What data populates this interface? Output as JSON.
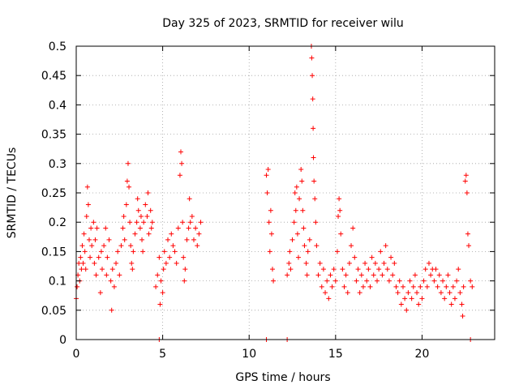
{
  "chart_data": {
    "type": "scatter",
    "title": "Day 325 of 2023, SRMTID for receiver wilu",
    "xlabel": "GPS time / hours",
    "ylabel": "SRMTID / TECUs",
    "xlim": [
      0,
      24.2
    ],
    "ylim": [
      0,
      0.5
    ],
    "grid": true,
    "legend": "none",
    "marker": "plus",
    "color": "#ff0000",
    "xticks": [
      0,
      5,
      10,
      15,
      20
    ],
    "xtick_labels": [
      "0",
      "5",
      "10",
      "15",
      "20"
    ],
    "yticks": [
      0,
      0.05,
      0.1,
      0.15,
      0.2,
      0.25,
      0.3,
      0.35,
      0.4,
      0.45,
      0.5
    ],
    "ytick_labels": [
      "0",
      "0.05",
      "0.1",
      "0.15",
      "0.2",
      "0.25",
      "0.3",
      "0.35",
      "0.4",
      "0.45",
      "0.5"
    ],
    "series": [
      {
        "name": "SRMTID",
        "points": [
          [
            0.0,
            0.07
          ],
          [
            0.05,
            0.09
          ],
          [
            0.1,
            0.11
          ],
          [
            0.15,
            0.13
          ],
          [
            0.2,
            0.1
          ],
          [
            0.25,
            0.14
          ],
          [
            0.3,
            0.12
          ],
          [
            0.35,
            0.16
          ],
          [
            0.4,
            0.13
          ],
          [
            0.45,
            0.18
          ],
          [
            0.5,
            0.15
          ],
          [
            0.55,
            0.12
          ],
          [
            0.6,
            0.21
          ],
          [
            0.65,
            0.26
          ],
          [
            0.7,
            0.23
          ],
          [
            0.75,
            0.17
          ],
          [
            0.8,
            0.14
          ],
          [
            0.85,
            0.19
          ],
          [
            0.9,
            0.16
          ],
          [
            1.0,
            0.2
          ],
          [
            1.05,
            0.13
          ],
          [
            1.1,
            0.17
          ],
          [
            1.15,
            0.11
          ],
          [
            1.2,
            0.19
          ],
          [
            1.3,
            0.14
          ],
          [
            1.4,
            0.08
          ],
          [
            1.45,
            0.15
          ],
          [
            1.5,
            0.12
          ],
          [
            1.6,
            0.16
          ],
          [
            1.7,
            0.19
          ],
          [
            1.75,
            0.11
          ],
          [
            1.8,
            0.14
          ],
          [
            1.9,
            0.17
          ],
          [
            2.0,
            0.1
          ],
          [
            2.05,
            0.05
          ],
          [
            2.1,
            0.12
          ],
          [
            2.2,
            0.09
          ],
          [
            2.3,
            0.13
          ],
          [
            2.4,
            0.15
          ],
          [
            2.5,
            0.11
          ],
          [
            2.6,
            0.16
          ],
          [
            2.7,
            0.19
          ],
          [
            2.75,
            0.21
          ],
          [
            2.8,
            0.17
          ],
          [
            2.9,
            0.23
          ],
          [
            2.95,
            0.27
          ],
          [
            3.0,
            0.3
          ],
          [
            3.05,
            0.26
          ],
          [
            3.1,
            0.2
          ],
          [
            3.15,
            0.16
          ],
          [
            3.2,
            0.13
          ],
          [
            3.25,
            0.12
          ],
          [
            3.3,
            0.15
          ],
          [
            3.4,
            0.18
          ],
          [
            3.5,
            0.2
          ],
          [
            3.55,
            0.24
          ],
          [
            3.6,
            0.22
          ],
          [
            3.7,
            0.19
          ],
          [
            3.75,
            0.21
          ],
          [
            3.8,
            0.17
          ],
          [
            3.85,
            0.15
          ],
          [
            3.9,
            0.2
          ],
          [
            4.0,
            0.23
          ],
          [
            4.1,
            0.21
          ],
          [
            4.15,
            0.25
          ],
          [
            4.2,
            0.18
          ],
          [
            4.3,
            0.22
          ],
          [
            4.35,
            0.19
          ],
          [
            4.4,
            0.2
          ],
          [
            4.6,
            0.09
          ],
          [
            4.7,
            0.11
          ],
          [
            4.8,
            0.14
          ],
          [
            4.85,
            0.06
          ],
          [
            4.9,
            0.1
          ],
          [
            5.0,
            0.08
          ],
          [
            5.05,
            0.12
          ],
          [
            5.1,
            0.15
          ],
          [
            5.2,
            0.13
          ],
          [
            5.3,
            0.17
          ],
          [
            5.4,
            0.14
          ],
          [
            5.5,
            0.18
          ],
          [
            5.6,
            0.16
          ],
          [
            5.7,
            0.15
          ],
          [
            5.8,
            0.13
          ],
          [
            5.9,
            0.19
          ],
          [
            6.0,
            0.28
          ],
          [
            6.05,
            0.32
          ],
          [
            6.1,
            0.3
          ],
          [
            6.15,
            0.2
          ],
          [
            6.2,
            0.14
          ],
          [
            6.25,
            0.1
          ],
          [
            6.3,
            0.12
          ],
          [
            6.4,
            0.17
          ],
          [
            6.5,
            0.19
          ],
          [
            6.55,
            0.24
          ],
          [
            6.6,
            0.2
          ],
          [
            6.7,
            0.21
          ],
          [
            6.8,
            0.17
          ],
          [
            6.9,
            0.19
          ],
          [
            7.0,
            0.16
          ],
          [
            7.1,
            0.18
          ],
          [
            7.2,
            0.2
          ],
          [
            11.0,
            0.28
          ],
          [
            11.05,
            0.25
          ],
          [
            11.1,
            0.29
          ],
          [
            11.15,
            0.2
          ],
          [
            11.2,
            0.15
          ],
          [
            11.25,
            0.22
          ],
          [
            11.3,
            0.18
          ],
          [
            11.35,
            0.12
          ],
          [
            11.4,
            0.1
          ],
          [
            12.2,
            0.11
          ],
          [
            12.3,
            0.13
          ],
          [
            12.35,
            0.15
          ],
          [
            12.4,
            0.12
          ],
          [
            12.5,
            0.17
          ],
          [
            12.6,
            0.2
          ],
          [
            12.65,
            0.25
          ],
          [
            12.7,
            0.22
          ],
          [
            12.75,
            0.26
          ],
          [
            12.8,
            0.18
          ],
          [
            12.85,
            0.14
          ],
          [
            12.9,
            0.24
          ],
          [
            13.0,
            0.29
          ],
          [
            13.05,
            0.27
          ],
          [
            13.1,
            0.22
          ],
          [
            13.15,
            0.19
          ],
          [
            13.2,
            0.16
          ],
          [
            13.3,
            0.13
          ],
          [
            13.35,
            0.11
          ],
          [
            13.4,
            0.15
          ],
          [
            13.5,
            0.17
          ],
          [
            13.6,
            0.5
          ],
          [
            13.62,
            0.48
          ],
          [
            13.65,
            0.45
          ],
          [
            13.68,
            0.41
          ],
          [
            13.7,
            0.36
          ],
          [
            13.72,
            0.31
          ],
          [
            13.75,
            0.27
          ],
          [
            13.8,
            0.24
          ],
          [
            13.85,
            0.2
          ],
          [
            13.9,
            0.16
          ],
          [
            14.0,
            0.11
          ],
          [
            14.1,
            0.13
          ],
          [
            14.2,
            0.09
          ],
          [
            14.3,
            0.12
          ],
          [
            14.4,
            0.08
          ],
          [
            14.5,
            0.1
          ],
          [
            14.6,
            0.07
          ],
          [
            14.7,
            0.11
          ],
          [
            14.8,
            0.09
          ],
          [
            14.9,
            0.12
          ],
          [
            15.0,
            0.1
          ],
          [
            15.1,
            0.15
          ],
          [
            15.15,
            0.21
          ],
          [
            15.2,
            0.24
          ],
          [
            15.25,
            0.22
          ],
          [
            15.3,
            0.18
          ],
          [
            15.4,
            0.12
          ],
          [
            15.5,
            0.09
          ],
          [
            15.6,
            0.11
          ],
          [
            15.7,
            0.08
          ],
          [
            15.8,
            0.13
          ],
          [
            15.9,
            0.16
          ],
          [
            16.0,
            0.19
          ],
          [
            16.1,
            0.14
          ],
          [
            16.2,
            0.1
          ],
          [
            16.3,
            0.12
          ],
          [
            16.4,
            0.08
          ],
          [
            16.5,
            0.11
          ],
          [
            16.6,
            0.09
          ],
          [
            16.7,
            0.13
          ],
          [
            16.8,
            0.1
          ],
          [
            16.9,
            0.12
          ],
          [
            17.0,
            0.09
          ],
          [
            17.1,
            0.14
          ],
          [
            17.2,
            0.11
          ],
          [
            17.3,
            0.13
          ],
          [
            17.4,
            0.1
          ],
          [
            17.5,
            0.12
          ],
          [
            17.6,
            0.15
          ],
          [
            17.7,
            0.11
          ],
          [
            17.8,
            0.13
          ],
          [
            17.9,
            0.16
          ],
          [
            18.0,
            0.12
          ],
          [
            18.1,
            0.1
          ],
          [
            18.2,
            0.14
          ],
          [
            18.3,
            0.11
          ],
          [
            18.4,
            0.13
          ],
          [
            18.5,
            0.09
          ],
          [
            18.6,
            0.08
          ],
          [
            18.7,
            0.1
          ],
          [
            18.8,
            0.06
          ],
          [
            18.9,
            0.09
          ],
          [
            19.0,
            0.07
          ],
          [
            19.1,
            0.05
          ],
          [
            19.2,
            0.08
          ],
          [
            19.3,
            0.1
          ],
          [
            19.4,
            0.07
          ],
          [
            19.5,
            0.09
          ],
          [
            19.6,
            0.11
          ],
          [
            19.7,
            0.08
          ],
          [
            19.8,
            0.06
          ],
          [
            19.9,
            0.09
          ],
          [
            20.0,
            0.07
          ],
          [
            20.1,
            0.1
          ],
          [
            20.2,
            0.12
          ],
          [
            20.3,
            0.09
          ],
          [
            20.4,
            0.13
          ],
          [
            20.5,
            0.11
          ],
          [
            20.6,
            0.12
          ],
          [
            20.7,
            0.1
          ],
          [
            20.8,
            0.12
          ],
          [
            20.9,
            0.09
          ],
          [
            21.0,
            0.11
          ],
          [
            21.1,
            0.08
          ],
          [
            21.2,
            0.1
          ],
          [
            21.3,
            0.07
          ],
          [
            21.4,
            0.09
          ],
          [
            21.5,
            0.11
          ],
          [
            21.6,
            0.08
          ],
          [
            21.7,
            0.06
          ],
          [
            21.8,
            0.09
          ],
          [
            21.9,
            0.07
          ],
          [
            22.0,
            0.1
          ],
          [
            22.1,
            0.12
          ],
          [
            22.2,
            0.08
          ],
          [
            22.3,
            0.06
          ],
          [
            22.35,
            0.04
          ],
          [
            22.4,
            0.09
          ],
          [
            22.5,
            0.27
          ],
          [
            22.55,
            0.28
          ],
          [
            22.6,
            0.25
          ],
          [
            22.65,
            0.18
          ],
          [
            22.7,
            0.16
          ],
          [
            22.8,
            0.1
          ],
          [
            22.9,
            0.09
          ],
          [
            4.8,
            0.0
          ],
          [
            11.0,
            0.0
          ],
          [
            12.2,
            0.0
          ],
          [
            22.8,
            0.0
          ]
        ]
      }
    ]
  }
}
